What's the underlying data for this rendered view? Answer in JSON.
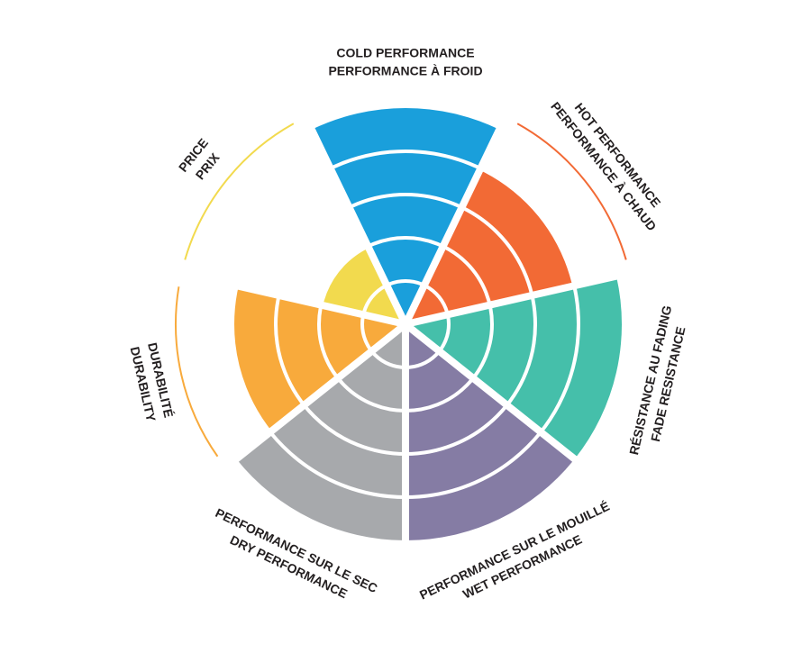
{
  "chart_data": {
    "type": "radial",
    "categories": [
      [
        "COLD PERFORMANCE",
        "PERFORMANCE À FROID"
      ],
      [
        "HOT PERFORMANCE",
        "PERFORMANCE À CHAUD"
      ],
      [
        "RÉSISTANCE AU FADING",
        "FADE RESISTANCE"
      ],
      [
        "PERFORMANCE SUR LE MOUILLÉ",
        "WET PERFORMANCE"
      ],
      [
        "PERFORMANCE SUR LE SEC",
        "DRY PERFORMANCE"
      ],
      [
        "DURABILITÉ",
        "DURABILITY"
      ],
      [
        "PRICE",
        "PRIX"
      ]
    ],
    "values": [
      5,
      4,
      5,
      5,
      5,
      4,
      2
    ],
    "colors": [
      "#1a9fdb",
      "#f26a35",
      "#45bfaa",
      "#857ca4",
      "#a7a9ac",
      "#f8aa3c",
      "#f2da4e"
    ],
    "rlim": [
      0,
      5
    ],
    "rticks": [
      1,
      2,
      3,
      4,
      5
    ]
  }
}
